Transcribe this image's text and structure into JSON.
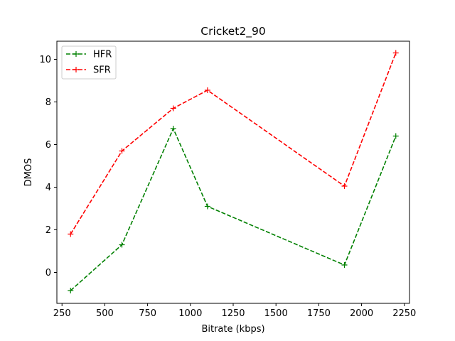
{
  "chart_data": {
    "type": "line",
    "title": "Cricket2_90",
    "xlabel": "Bitrate (kbps)",
    "ylabel": "DMOS",
    "xlim": [
      220,
      2280
    ],
    "ylim": [
      -1.45,
      10.85
    ],
    "xticks": [
      250,
      500,
      750,
      1000,
      1250,
      1500,
      1750,
      2000,
      2250
    ],
    "yticks": [
      0,
      2,
      4,
      6,
      8,
      10
    ],
    "grid": false,
    "legend_position": "top-left",
    "x": [
      300,
      600,
      900,
      1100,
      1900,
      2200
    ],
    "series": [
      {
        "name": "HFR",
        "color": "#008000",
        "linestyle": "dashed",
        "marker": "+",
        "values": [
          -0.85,
          1.3,
          6.75,
          3.1,
          0.35,
          6.4
        ]
      },
      {
        "name": "SFR",
        "color": "#ff0000",
        "linestyle": "dashed",
        "marker": "+",
        "values": [
          1.8,
          5.7,
          7.7,
          8.55,
          4.05,
          10.3
        ]
      }
    ]
  }
}
